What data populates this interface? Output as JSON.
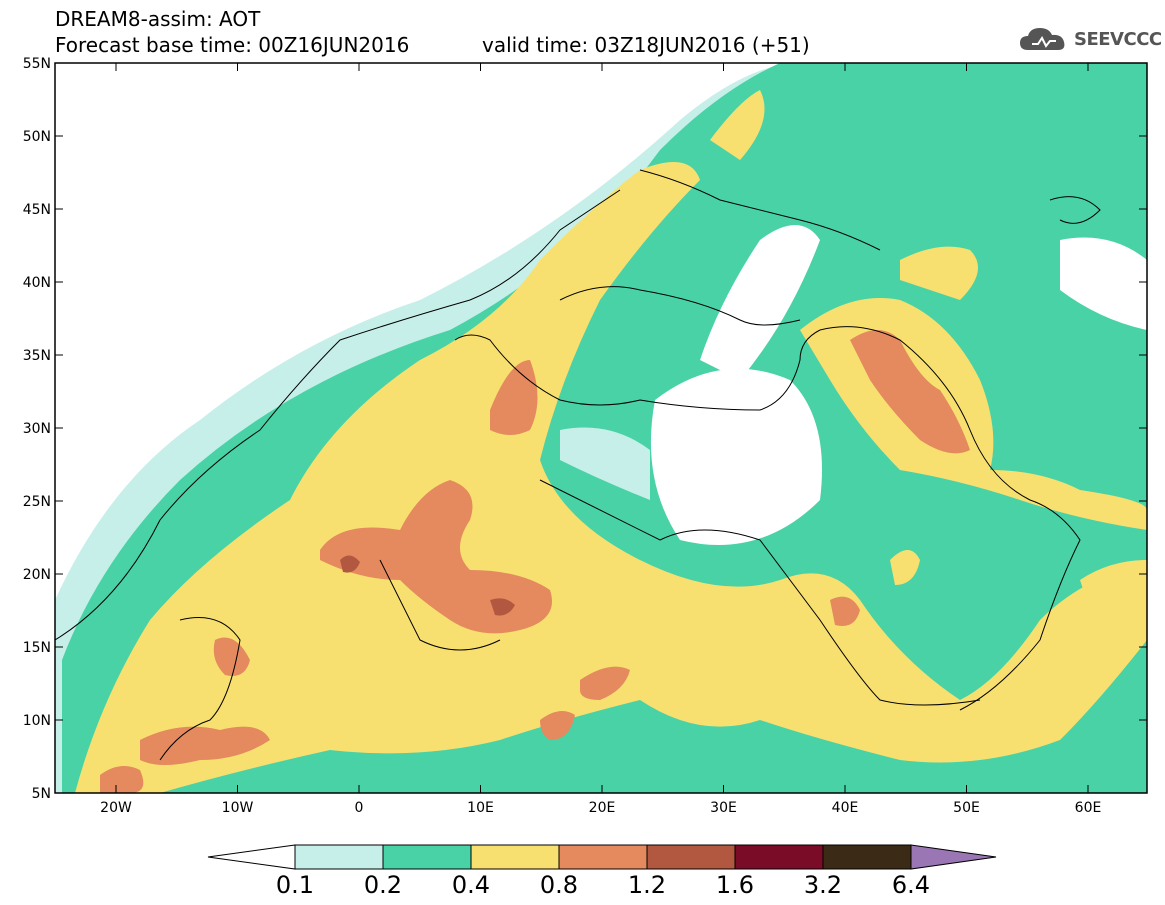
{
  "header": {
    "title": "DREAM8-assim: AOT",
    "base_time": "Forecast base time: 00Z16JUN2016",
    "valid_time": "valid time: 03Z18JUN2016 (+51)"
  },
  "logo": {
    "text": "SEEVCCC",
    "icon": "cloud-icon"
  },
  "map": {
    "lat_ticks": [
      "55N",
      "50N",
      "45N",
      "40N",
      "35N",
      "30N",
      "25N",
      "20N",
      "15N",
      "10N",
      "5N"
    ],
    "lon_ticks": [
      "20W",
      "10W",
      "0",
      "10E",
      "20E",
      "30E",
      "40E",
      "50E",
      "60E"
    ]
  },
  "colorbar": {
    "ticks": [
      "0.1",
      "0.2",
      "0.4",
      "0.8",
      "1.2",
      "1.6",
      "3.2",
      "6.4"
    ],
    "colors": {
      "c01": "#c7efe9",
      "c02": "#49d2a6",
      "c04": "#f8e070",
      "c08": "#e48a5e",
      "c12": "#b35840",
      "c16": "#7b0c27",
      "c32": "#3b2a16",
      "c64": "#9a77b4",
      "land": "#ffffff"
    }
  }
}
